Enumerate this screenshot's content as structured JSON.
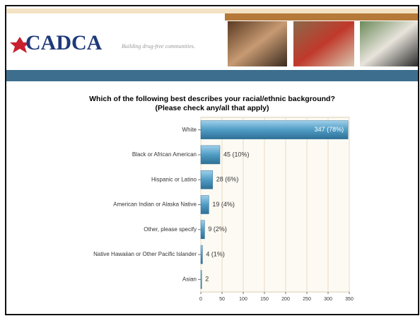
{
  "header": {
    "logo": "CADCA",
    "tagline": "Building drug-free communities."
  },
  "chart_data": {
    "type": "bar",
    "orientation": "horizontal",
    "title": "Which of the following best describes your racial/ethnic background?",
    "subtitle": "(Please check any/all that apply)",
    "categories": [
      "White",
      "Black or African American",
      "Hispanic or Latino",
      "American Indian or Alaska Native",
      "Other, please specify",
      "Native Hawaiian or Other Pacific Islander",
      "Asian"
    ],
    "values": [
      347,
      45,
      28,
      19,
      9,
      4,
      2
    ],
    "value_labels": [
      "347 (78%)",
      "45 (10%)",
      "28 (6%)",
      "19 (4%)",
      "9 (2%)",
      "4 (1%)",
      "2"
    ],
    "color": "#4f9cc4",
    "xlim": [
      0,
      350
    ],
    "xticks": [
      0,
      50,
      100,
      150,
      200,
      250,
      300,
      350
    ],
    "grid": true
  }
}
